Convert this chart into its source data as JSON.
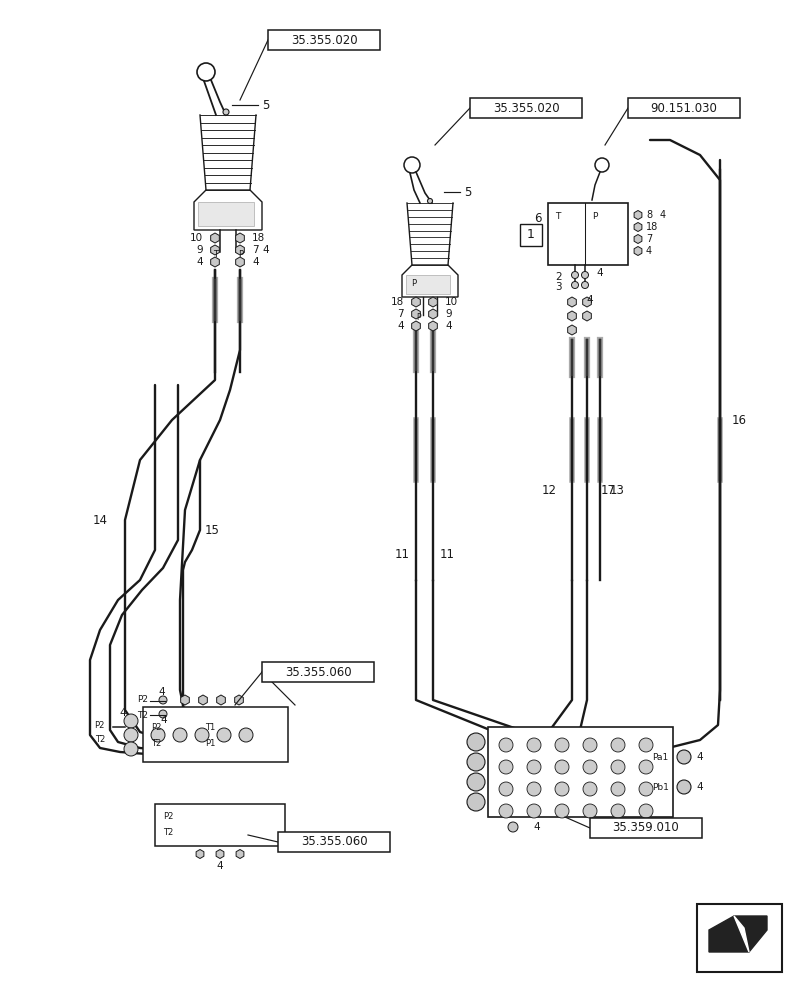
{
  "bg_color": "#ffffff",
  "lc": "#1a1a1a",
  "gc": "#aaaaaa",
  "labels": {
    "b1": "35.355.020",
    "b2": "35.355.020",
    "b3": "90.151.030",
    "b4": "35.355.060",
    "b5": "35.355.060",
    "b6": "35.359.010"
  },
  "pipe_lw": 1.6,
  "hose_lw": 2.2,
  "line_lw": 1.3
}
